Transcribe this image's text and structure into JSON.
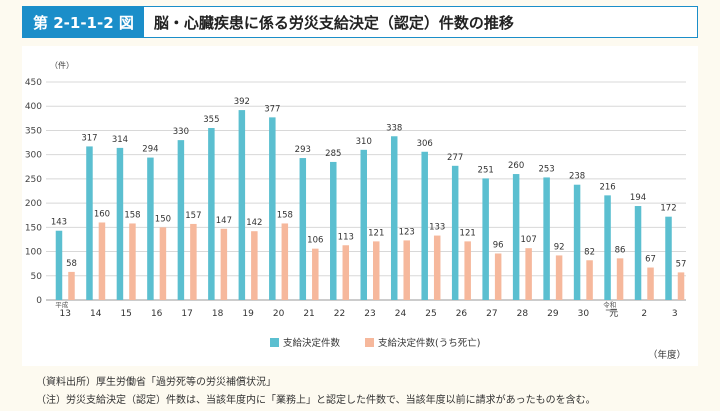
{
  "header": {
    "figure_label": "第 2-1-1-2 図",
    "title": "脳・心臓疾患に係る労災支給決定（認定）件数の推移"
  },
  "chart_data": {
    "type": "bar",
    "title": "脳・心臓疾患に係る労災支給決定（認定）件数の推移",
    "ylabel": "（件）",
    "xlabel": "（年度）",
    "ylim": [
      0,
      450
    ],
    "yticks": [
      0,
      50,
      100,
      150,
      200,
      250,
      300,
      350,
      400,
      450
    ],
    "categories": [
      "13",
      "14",
      "15",
      "16",
      "17",
      "18",
      "19",
      "20",
      "21",
      "22",
      "23",
      "24",
      "25",
      "26",
      "27",
      "28",
      "29",
      "30",
      "元",
      "2",
      "3"
    ],
    "era_labels": {
      "heisei": "平成",
      "reiwa": "令和"
    },
    "series": [
      {
        "name": "支給決定件数",
        "color": "#5bbfd0",
        "values": [
          143,
          317,
          314,
          294,
          330,
          355,
          392,
          377,
          293,
          285,
          310,
          338,
          306,
          277,
          251,
          260,
          253,
          238,
          216,
          194,
          172
        ]
      },
      {
        "name": "支給決定件数(うち死亡)",
        "color": "#f6b89c",
        "values": [
          58,
          160,
          158,
          150,
          157,
          147,
          142,
          158,
          106,
          113,
          121,
          123,
          133,
          121,
          96,
          107,
          92,
          82,
          86,
          67,
          57
        ]
      }
    ],
    "legend": "bottom-center",
    "grid": true
  },
  "footer": {
    "source": "（資料出所）厚生労働省「過労死等の労災補償状況」",
    "note": "（注）労災支給決定（認定）件数は、当該年度内に「業務上」と認定した件数で、当該年度以前に請求があったものを含む。"
  }
}
